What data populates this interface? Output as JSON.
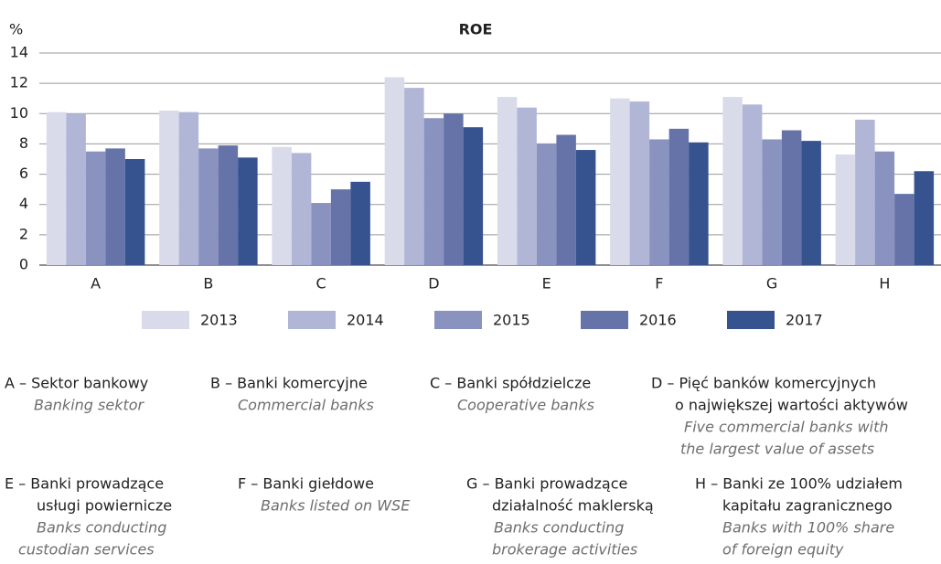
{
  "chart_data": {
    "type": "bar",
    "title": "ROE",
    "y_label": "%",
    "categories": [
      "A",
      "B",
      "C",
      "D",
      "E",
      "F",
      "G",
      "H"
    ],
    "series": [
      {
        "name": "2013",
        "color": "#d9dbea",
        "values": [
          10.1,
          10.2,
          7.8,
          12.4,
          11.1,
          11.0,
          11.1,
          7.3
        ]
      },
      {
        "name": "2014",
        "color": "#b1b6d6",
        "values": [
          10.0,
          10.1,
          7.4,
          11.7,
          10.4,
          10.8,
          10.6,
          9.6
        ]
      },
      {
        "name": "2015",
        "color": "#8a93c0",
        "values": [
          7.5,
          7.7,
          4.1,
          9.7,
          8.0,
          8.3,
          8.3,
          7.5
        ]
      },
      {
        "name": "2016",
        "color": "#6673a8",
        "values": [
          7.7,
          7.9,
          5.0,
          10.0,
          8.6,
          9.0,
          8.9,
          4.7
        ]
      },
      {
        "name": "2017",
        "color": "#36528f",
        "values": [
          7.0,
          7.1,
          5.5,
          9.1,
          7.6,
          8.1,
          8.2,
          6.2
        ]
      }
    ],
    "ylim": [
      0,
      14
    ],
    "yticks": [
      0,
      2,
      4,
      6,
      8,
      10,
      12,
      14
    ],
    "grid": true,
    "legend": "bottom"
  },
  "notes": [
    {
      "label": [
        "A – Sektor bankowy"
      ],
      "english": [
        "Banking sektor"
      ]
    },
    {
      "label": [
        "B – Banki komercyjne"
      ],
      "english": [
        "Commercial banks"
      ]
    },
    {
      "label": [
        "C – Banki spółdzielcze"
      ],
      "english": [
        "Cooperative banks"
      ]
    },
    {
      "label": [
        "D – Pięć banków komercyjnych",
        "o największej wartości aktywów"
      ],
      "english": [
        "Five commercial banks with",
        "the largest value of assets"
      ]
    },
    {
      "label": [
        "E –  Banki prowadzące",
        "usługi powiernicze"
      ],
      "english": [
        "Banks conducting",
        "custodian services"
      ]
    },
    {
      "label": [
        "F – Banki giełdowe"
      ],
      "english": [
        "Banks listed on WSE"
      ]
    },
    {
      "label": [
        "G – Banki prowadzące",
        "działalność maklerską"
      ],
      "english": [
        "Banks conducting",
        "brokerage activities"
      ]
    },
    {
      "label": [
        "H – Banki ze 100% udziałem",
        "kapitału zagranicznego"
      ],
      "english": [
        "Banks with 100% share",
        "of foreign equity"
      ]
    }
  ]
}
